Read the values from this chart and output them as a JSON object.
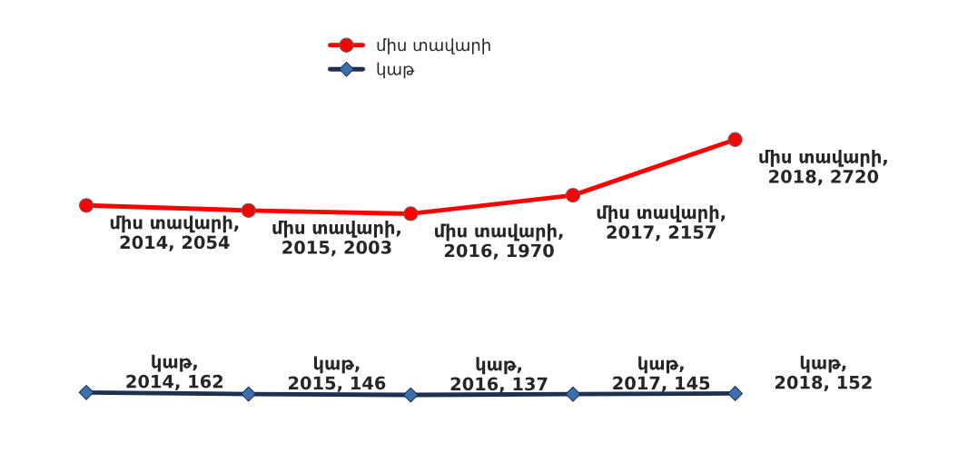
{
  "chart_data": {
    "type": "line",
    "categories": [
      null,
      null,
      null,
      null,
      null
    ],
    "series": [
      {
        "name": "միս տավարի",
        "color": "#ff0000",
        "marker": "circle",
        "values": [
          2054,
          2003,
          1970,
          2157,
          2720
        ],
        "value_labels": [
          "միս տավարի, 2014, 2054",
          "միս տավարի, 2015, 2003",
          "միս տավարի, 2016, 1970",
          "միս տավարի, 2017, 2157",
          "միս տավարի, 2018, 2720"
        ]
      },
      {
        "name": "կաթ",
        "color": "#1f3050",
        "marker": "diamond",
        "values": [
          162,
          146,
          137,
          145,
          152
        ],
        "value_labels": [
          "կաթ, 2014, 162",
          "կաթ, 2015, 146",
          "կաթ, 2016, 137",
          "կաթ, 2017, 145",
          "կաթ, 2018, 152"
        ]
      }
    ],
    "legend": "top",
    "line_style": "solid",
    "tick_labels": false
  }
}
